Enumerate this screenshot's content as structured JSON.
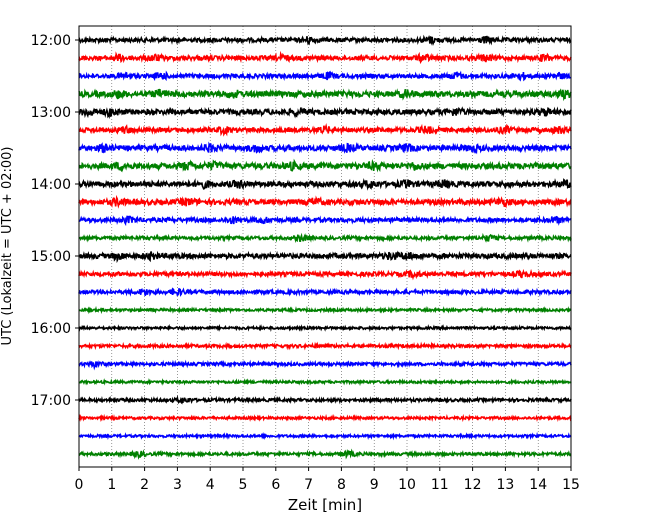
{
  "chart_data": {
    "type": "line",
    "xlabel": "Zeit  [min]",
    "ylabel": "UTC (Lokalzeit = UTC + 02:00)",
    "xlim": [
      0,
      15
    ],
    "x_ticks": [
      "0",
      "1",
      "2",
      "3",
      "4",
      "5",
      "6",
      "7",
      "8",
      "9",
      "10",
      "11",
      "12",
      "13",
      "14",
      "15"
    ],
    "y_tick_labels": [
      "12:00",
      "13:00",
      "14:00",
      "15:00",
      "16:00",
      "17:00"
    ],
    "grid": "vertical dotted at each minute",
    "line_colors": [
      "#000000",
      "#ff0000",
      "#0000ff",
      "#008000"
    ],
    "traces": [
      {
        "start": "12:00",
        "color": "#000000",
        "amp": 2.0,
        "events": [
          7,
          10.7,
          12.4
        ]
      },
      {
        "start": "12:15",
        "color": "#ff0000",
        "amp": 2.2,
        "events": [
          1.2,
          2.3,
          6.2,
          10.5,
          12.4,
          14.2
        ]
      },
      {
        "start": "12:30",
        "color": "#0000ff",
        "amp": 2.0,
        "events": [
          1.4,
          2.5,
          7.6,
          11.5,
          13.5,
          14.6
        ]
      },
      {
        "start": "12:45",
        "color": "#008000",
        "amp": 2.8,
        "events": [
          1.2,
          2.5,
          4.7,
          10.0,
          14.8
        ]
      },
      {
        "start": "13:00",
        "color": "#000000",
        "amp": 2.6,
        "events": [
          0.3,
          1.0,
          6.7,
          11.5,
          14.2
        ]
      },
      {
        "start": "13:15",
        "color": "#ff0000",
        "amp": 2.2,
        "events": [
          1.4,
          4.4,
          7.5,
          10.6,
          13.0,
          14.6
        ]
      },
      {
        "start": "13:30",
        "color": "#0000ff",
        "amp": 2.6,
        "events": [
          0.8,
          4.0,
          5.4,
          8.2,
          10.0,
          12.0
        ]
      },
      {
        "start": "13:45",
        "color": "#008000",
        "amp": 2.8,
        "events": [
          1.3,
          3.3,
          4.1,
          6.5,
          9.0,
          10.2
        ]
      },
      {
        "start": "14:00",
        "color": "#000000",
        "amp": 2.6,
        "events": [
          3.8,
          4.9,
          8.9,
          10.0,
          11.1,
          14.8
        ]
      },
      {
        "start": "14:15",
        "color": "#ff0000",
        "amp": 2.6,
        "events": [
          1.2,
          3.3,
          7.2,
          12.9
        ]
      },
      {
        "start": "14:30",
        "color": "#0000ff",
        "amp": 2.0,
        "events": [
          1.5,
          4.7,
          5.6,
          14.5
        ]
      },
      {
        "start": "14:45",
        "color": "#008000",
        "amp": 1.6,
        "events": [
          6.8,
          12.5
        ]
      },
      {
        "start": "15:00",
        "color": "#000000",
        "amp": 2.4,
        "events": [
          1.2,
          2.2,
          9.5,
          10.0
        ]
      },
      {
        "start": "15:15",
        "color": "#ff0000",
        "amp": 2.0,
        "events": [
          10.2,
          13.5
        ]
      },
      {
        "start": "15:30",
        "color": "#0000ff",
        "amp": 1.8,
        "events": [
          2.0,
          3.0
        ]
      },
      {
        "start": "15:45",
        "color": "#008000",
        "amp": 1.2,
        "events": []
      },
      {
        "start": "16:00",
        "color": "#000000",
        "amp": 1.2,
        "events": []
      },
      {
        "start": "16:15",
        "color": "#ff0000",
        "amp": 1.5,
        "events": []
      },
      {
        "start": "16:30",
        "color": "#0000ff",
        "amp": 1.5,
        "events": [
          0.5
        ]
      },
      {
        "start": "16:45",
        "color": "#008000",
        "amp": 1.2,
        "events": []
      },
      {
        "start": "17:00",
        "color": "#000000",
        "amp": 1.5,
        "events": [
          3.2
        ]
      },
      {
        "start": "17:15",
        "color": "#ff0000",
        "amp": 1.2,
        "events": []
      },
      {
        "start": "17:30",
        "color": "#0000ff",
        "amp": 1.2,
        "events": []
      },
      {
        "start": "17:45",
        "color": "#008000",
        "amp": 1.4,
        "events": [
          1.8,
          8.2
        ]
      }
    ]
  }
}
